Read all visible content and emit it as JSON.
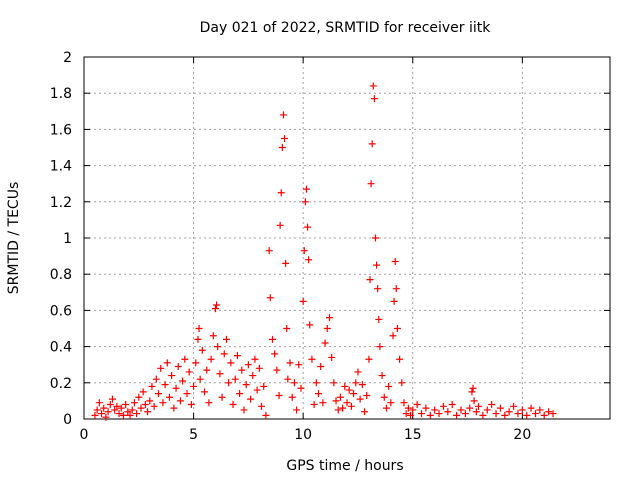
{
  "chart_data": {
    "type": "scatter",
    "title": "Day 021 of 2022, SRMTID for receiver iitk",
    "xlabel": "GPS time / hours",
    "ylabel": "SRMTID / TECUs",
    "xlim": [
      0,
      24
    ],
    "ylim": [
      0,
      2
    ],
    "xticks": [
      0,
      5,
      10,
      15,
      20
    ],
    "yticks": [
      0,
      0.2,
      0.4,
      0.6,
      0.8,
      1,
      1.2,
      1.4,
      1.6,
      1.8,
      2
    ],
    "xtick_labels": [
      "0",
      "5",
      "10",
      "15",
      "20"
    ],
    "ytick_labels": [
      "0",
      "0.2",
      "0.4",
      "0.6",
      "0.8",
      "1",
      "1.2",
      "1.4",
      "1.6",
      "1.8",
      "2"
    ],
    "grid": true,
    "marker": "+",
    "series": [
      {
        "name": "SRMTID",
        "color": "#ff0000",
        "points": [
          [
            0.5,
            0.02
          ],
          [
            0.6,
            0.05
          ],
          [
            0.7,
            0.09
          ],
          [
            0.8,
            0.03
          ],
          [
            0.9,
            0.06
          ],
          [
            1.0,
            0.01
          ],
          [
            1.1,
            0.04
          ],
          [
            1.2,
            0.08
          ],
          [
            1.3,
            0.11
          ],
          [
            1.4,
            0.05
          ],
          [
            1.5,
            0.07
          ],
          [
            1.6,
            0.03
          ],
          [
            1.7,
            0.06
          ],
          [
            1.8,
            0.02
          ],
          [
            1.9,
            0.08
          ],
          [
            2.0,
            0.04
          ],
          [
            2.1,
            0.02
          ],
          [
            2.2,
            0.05
          ],
          [
            2.3,
            0.09
          ],
          [
            2.4,
            0.03
          ],
          [
            2.5,
            0.12
          ],
          [
            2.6,
            0.06
          ],
          [
            2.7,
            0.15
          ],
          [
            2.8,
            0.08
          ],
          [
            2.9,
            0.04
          ],
          [
            3.0,
            0.1
          ],
          [
            3.1,
            0.18
          ],
          [
            3.2,
            0.07
          ],
          [
            3.3,
            0.22
          ],
          [
            3.4,
            0.14
          ],
          [
            3.5,
            0.28
          ],
          [
            3.6,
            0.09
          ],
          [
            3.7,
            0.19
          ],
          [
            3.8,
            0.31
          ],
          [
            3.9,
            0.12
          ],
          [
            4.0,
            0.24
          ],
          [
            4.1,
            0.06
          ],
          [
            4.2,
            0.17
          ],
          [
            4.3,
            0.29
          ],
          [
            4.4,
            0.1
          ],
          [
            4.5,
            0.21
          ],
          [
            4.6,
            0.33
          ],
          [
            4.7,
            0.14
          ],
          [
            4.8,
            0.26
          ],
          [
            4.9,
            0.08
          ],
          [
            5.0,
            0.18
          ],
          [
            5.1,
            0.31
          ],
          [
            5.2,
            0.44
          ],
          [
            5.25,
            0.5
          ],
          [
            5.3,
            0.22
          ],
          [
            5.4,
            0.38
          ],
          [
            5.5,
            0.15
          ],
          [
            5.6,
            0.27
          ],
          [
            5.7,
            0.09
          ],
          [
            5.8,
            0.33
          ],
          [
            5.9,
            0.46
          ],
          [
            6.0,
            0.61
          ],
          [
            6.05,
            0.63
          ],
          [
            6.1,
            0.4
          ],
          [
            6.2,
            0.25
          ],
          [
            6.3,
            0.12
          ],
          [
            6.4,
            0.36
          ],
          [
            6.5,
            0.44
          ],
          [
            6.6,
            0.2
          ],
          [
            6.7,
            0.31
          ],
          [
            6.8,
            0.08
          ],
          [
            6.9,
            0.22
          ],
          [
            7.0,
            0.35
          ],
          [
            7.1,
            0.14
          ],
          [
            7.2,
            0.27
          ],
          [
            7.3,
            0.05
          ],
          [
            7.4,
            0.19
          ],
          [
            7.5,
            0.3
          ],
          [
            7.6,
            0.11
          ],
          [
            7.7,
            0.24
          ],
          [
            7.8,
            0.33
          ],
          [
            7.9,
            0.16
          ],
          [
            8.0,
            0.28
          ],
          [
            8.1,
            0.07
          ],
          [
            8.2,
            0.18
          ],
          [
            8.3,
            0.02
          ],
          [
            8.45,
            0.93
          ],
          [
            8.5,
            0.67
          ],
          [
            8.6,
            0.44
          ],
          [
            8.7,
            0.36
          ],
          [
            8.8,
            0.27
          ],
          [
            8.9,
            0.13
          ],
          [
            8.95,
            1.07
          ],
          [
            9.0,
            1.25
          ],
          [
            9.05,
            1.5
          ],
          [
            9.1,
            1.68
          ],
          [
            9.15,
            1.55
          ],
          [
            9.2,
            0.86
          ],
          [
            9.25,
            0.5
          ],
          [
            9.3,
            0.22
          ],
          [
            9.4,
            0.31
          ],
          [
            9.5,
            0.12
          ],
          [
            9.6,
            0.2
          ],
          [
            9.7,
            0.05
          ],
          [
            9.8,
            0.3
          ],
          [
            9.9,
            0.17
          ],
          [
            10.0,
            0.65
          ],
          [
            10.05,
            0.93
          ],
          [
            10.1,
            1.2
          ],
          [
            10.15,
            1.27
          ],
          [
            10.2,
            1.06
          ],
          [
            10.25,
            0.88
          ],
          [
            10.3,
            0.52
          ],
          [
            10.4,
            0.33
          ],
          [
            10.5,
            0.08
          ],
          [
            10.6,
            0.2
          ],
          [
            10.7,
            0.14
          ],
          [
            10.8,
            0.29
          ],
          [
            10.9,
            0.09
          ],
          [
            11.0,
            0.42
          ],
          [
            11.1,
            0.5
          ],
          [
            11.2,
            0.56
          ],
          [
            11.3,
            0.34
          ],
          [
            11.4,
            0.2
          ],
          [
            11.5,
            0.1
          ],
          [
            11.6,
            0.05
          ],
          [
            11.7,
            0.12
          ],
          [
            11.8,
            0.06
          ],
          [
            11.9,
            0.18
          ],
          [
            12.0,
            0.09
          ],
          [
            12.1,
            0.16
          ],
          [
            12.2,
            0.07
          ],
          [
            12.3,
            0.14
          ],
          [
            12.4,
            0.2
          ],
          [
            12.5,
            0.26
          ],
          [
            12.6,
            0.11
          ],
          [
            12.7,
            0.19
          ],
          [
            12.8,
            0.04
          ],
          [
            12.9,
            0.13
          ],
          [
            13.0,
            0.33
          ],
          [
            13.05,
            0.77
          ],
          [
            13.1,
            1.3
          ],
          [
            13.15,
            1.52
          ],
          [
            13.2,
            1.84
          ],
          [
            13.25,
            1.77
          ],
          [
            13.3,
            1.0
          ],
          [
            13.35,
            0.85
          ],
          [
            13.4,
            0.72
          ],
          [
            13.45,
            0.55
          ],
          [
            13.5,
            0.4
          ],
          [
            13.6,
            0.24
          ],
          [
            13.7,
            0.12
          ],
          [
            13.8,
            0.06
          ],
          [
            13.9,
            0.18
          ],
          [
            14.0,
            0.09
          ],
          [
            14.1,
            0.46
          ],
          [
            14.15,
            0.65
          ],
          [
            14.2,
            0.87
          ],
          [
            14.25,
            0.72
          ],
          [
            14.3,
            0.5
          ],
          [
            14.4,
            0.33
          ],
          [
            14.5,
            0.2
          ],
          [
            14.6,
            0.09
          ],
          [
            14.7,
            0.03
          ],
          [
            14.8,
            0.06
          ],
          [
            14.9,
            0.02
          ],
          [
            15.0,
            0.05
          ],
          [
            15.2,
            0.08
          ],
          [
            15.4,
            0.03
          ],
          [
            15.6,
            0.06
          ],
          [
            15.8,
            0.02
          ],
          [
            16.0,
            0.05
          ],
          [
            16.2,
            0.03
          ],
          [
            16.4,
            0.07
          ],
          [
            16.6,
            0.04
          ],
          [
            16.8,
            0.08
          ],
          [
            17.0,
            0.02
          ],
          [
            17.2,
            0.05
          ],
          [
            17.4,
            0.03
          ],
          [
            17.6,
            0.06
          ],
          [
            17.7,
            0.15
          ],
          [
            17.75,
            0.17
          ],
          [
            17.8,
            0.1
          ],
          [
            17.9,
            0.04
          ],
          [
            18.0,
            0.07
          ],
          [
            18.2,
            0.02
          ],
          [
            18.4,
            0.05
          ],
          [
            18.6,
            0.08
          ],
          [
            18.8,
            0.03
          ],
          [
            19.0,
            0.06
          ],
          [
            19.2,
            0.02
          ],
          [
            19.4,
            0.04
          ],
          [
            19.6,
            0.07
          ],
          [
            19.8,
            0.03
          ],
          [
            20.0,
            0.05
          ],
          [
            20.2,
            0.02
          ],
          [
            20.4,
            0.06
          ],
          [
            20.6,
            0.03
          ],
          [
            20.8,
            0.05
          ],
          [
            21.0,
            0.02
          ],
          [
            21.2,
            0.04
          ],
          [
            21.4,
            0.03
          ]
        ]
      }
    ]
  }
}
